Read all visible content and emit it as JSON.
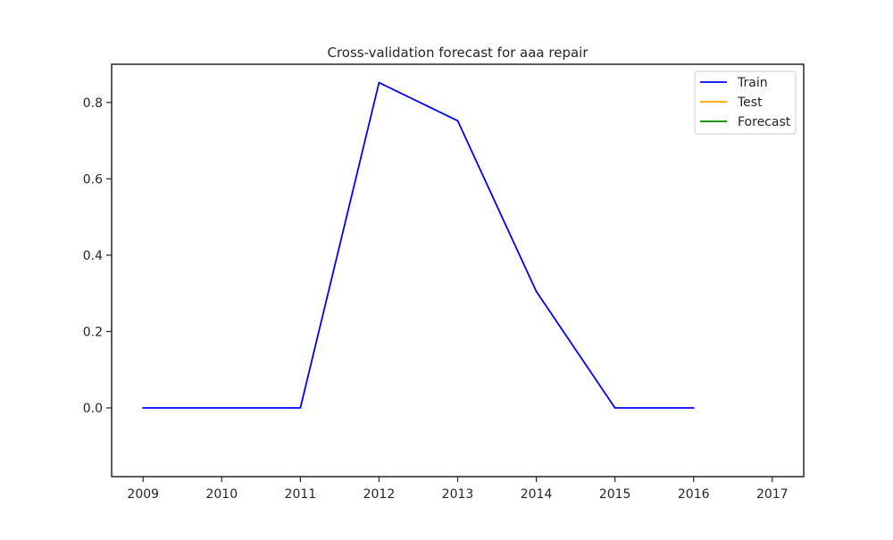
{
  "chart_data": {
    "type": "line",
    "title": "Cross-validation forecast for aaa repair",
    "xlabel": "",
    "ylabel": "",
    "x_ticks": [
      "2009",
      "2010",
      "2011",
      "2012",
      "2013",
      "2014",
      "2015",
      "2016",
      "2017"
    ],
    "y_ticks": [
      "0.0",
      "0.2",
      "0.4",
      "0.6",
      "0.8"
    ],
    "xlim": [
      2008.6,
      2017.4
    ],
    "ylim": [
      -0.18,
      0.9
    ],
    "grid": false,
    "legend_position": "top-right",
    "series": [
      {
        "name": "Train",
        "color": "#0000ff",
        "x": [
          2009,
          2010,
          2011,
          2012,
          2013,
          2014,
          2015,
          2016
        ],
        "y": [
          0.0,
          0.0,
          0.0,
          0.852,
          0.752,
          0.305,
          0.0,
          0.0
        ]
      },
      {
        "name": "Test",
        "color": "#ffa500",
        "x": [],
        "y": []
      },
      {
        "name": "Forecast",
        "color": "#008000",
        "x": [],
        "y": []
      }
    ]
  }
}
